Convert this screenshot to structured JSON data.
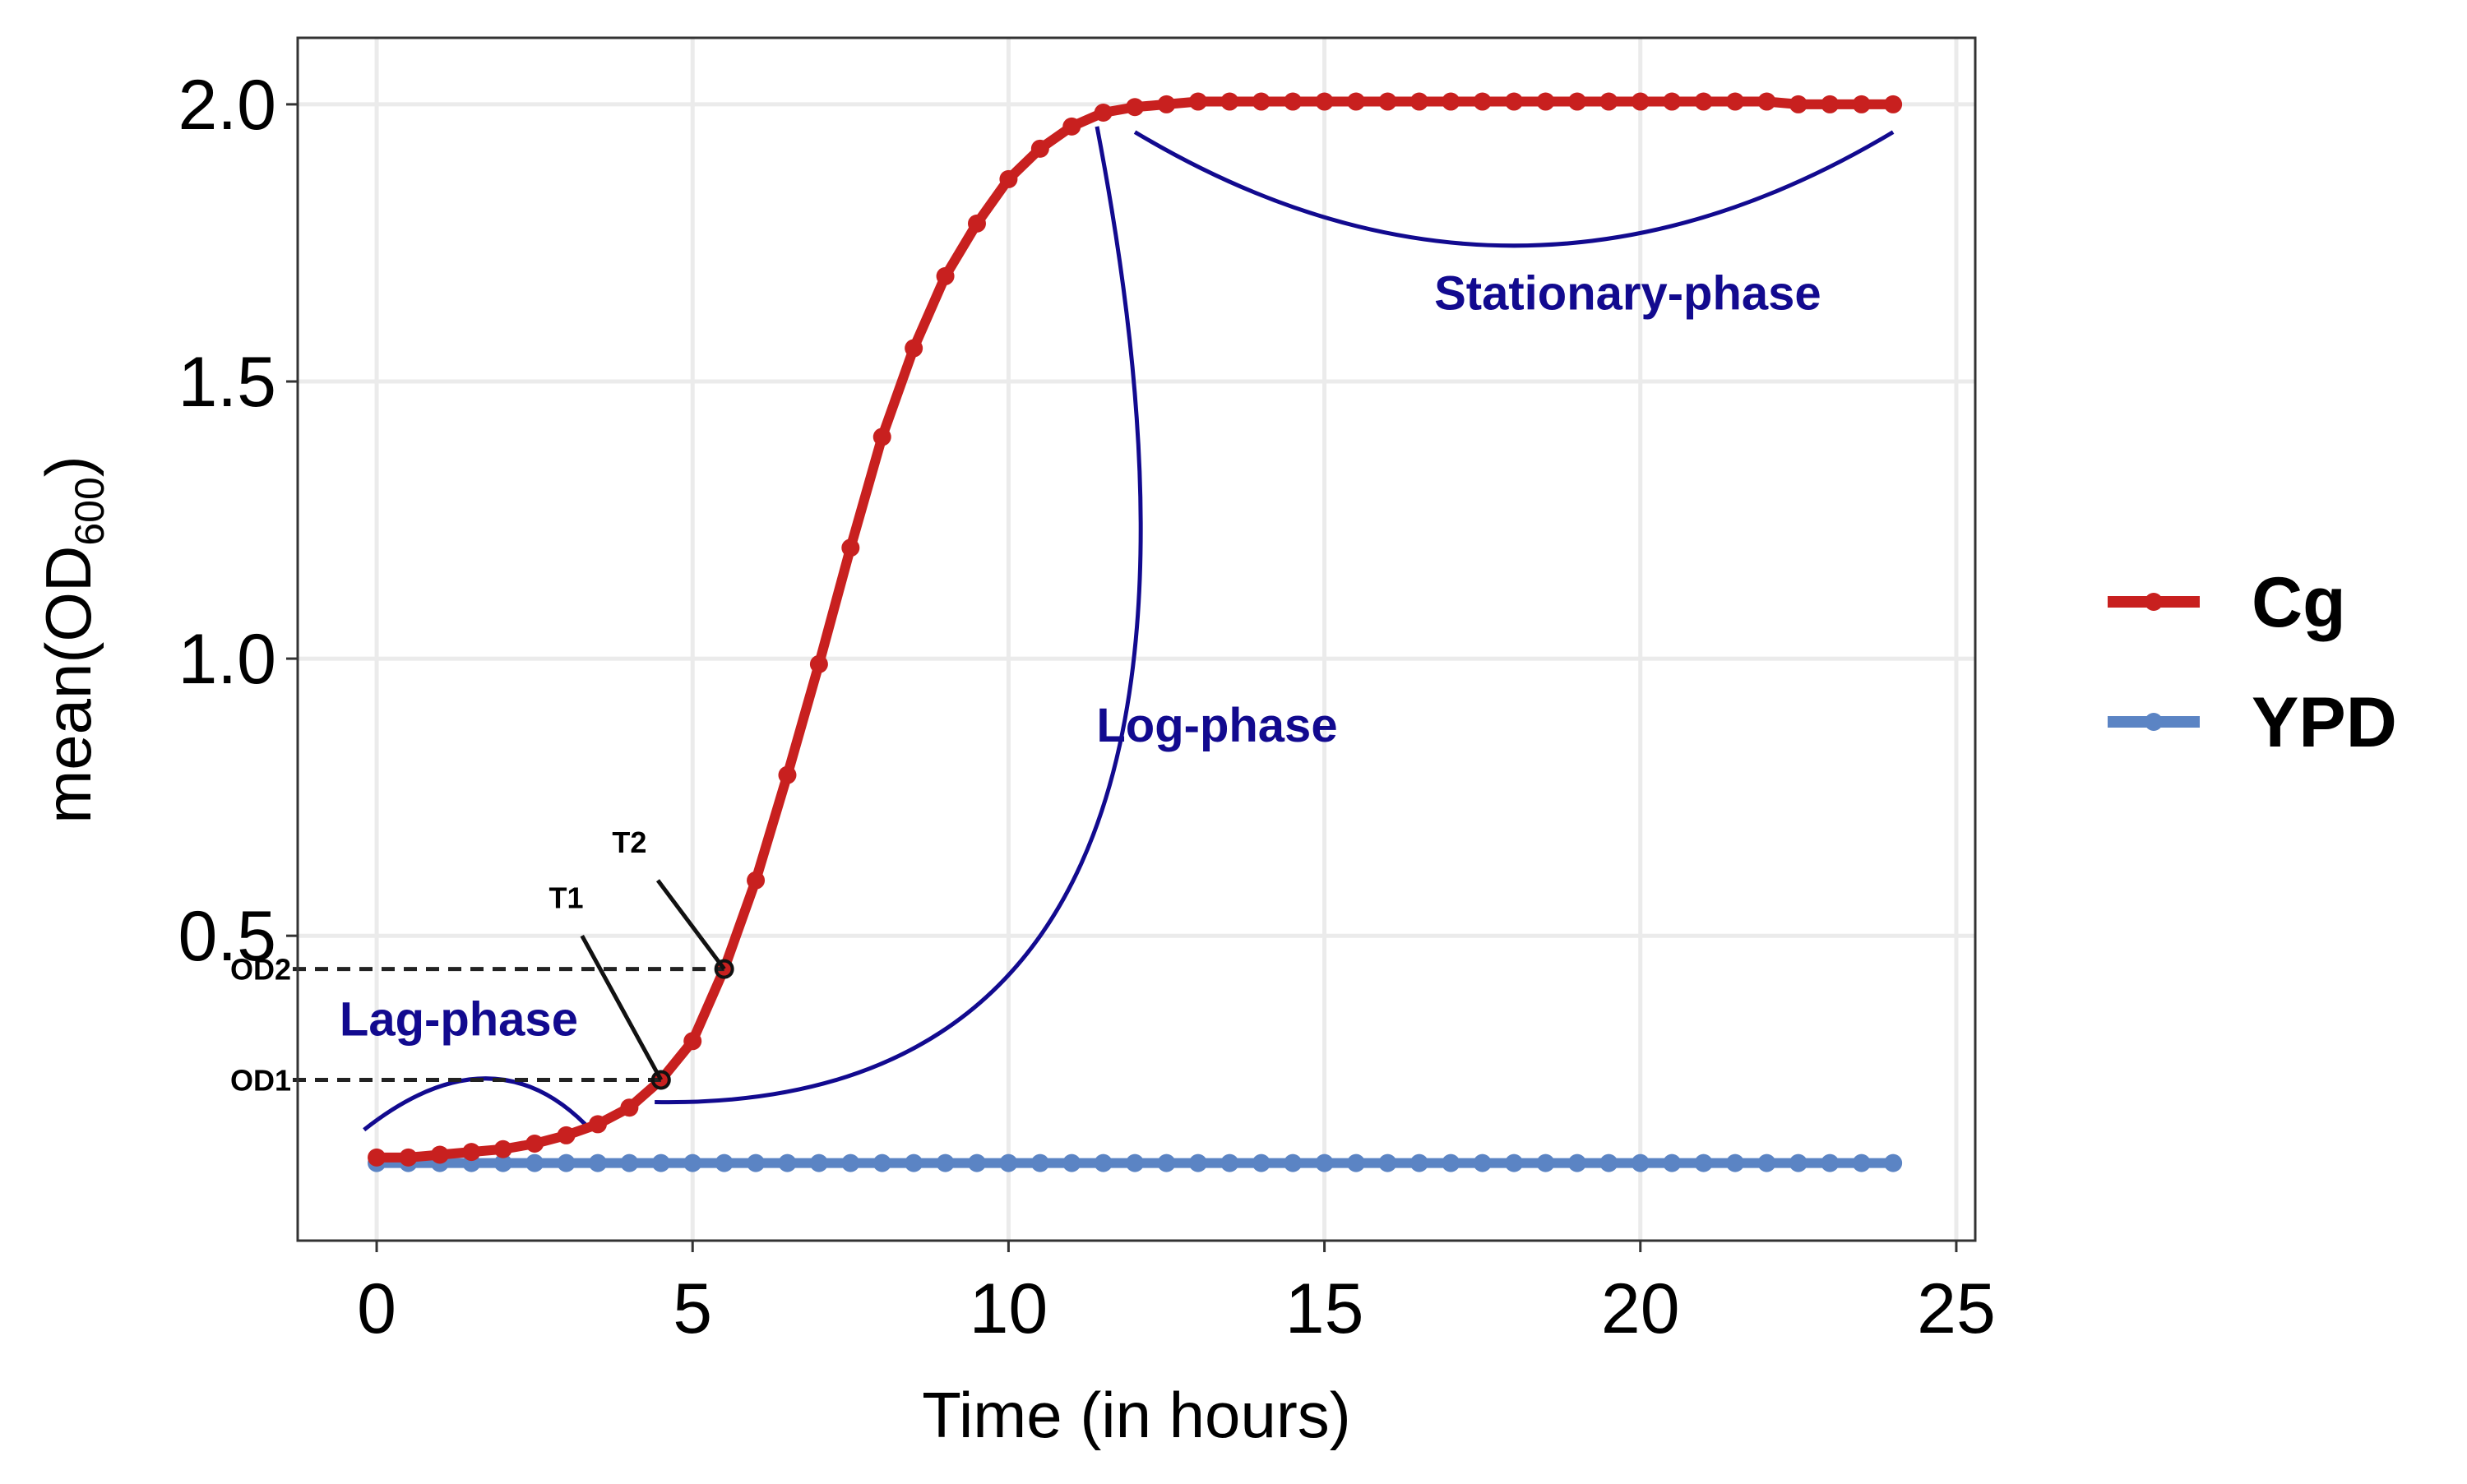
{
  "chart_data": {
    "type": "line",
    "title": "",
    "xlabel": "Time (in hours)",
    "ylabel": "mean(OD",
    "ylabel_subscript": "600",
    "ylabel_suffix": ")",
    "xlim": [
      -1.25,
      25.3
    ],
    "ylim": [
      -0.05,
      2.12
    ],
    "x_ticks": [
      0,
      5,
      10,
      15,
      20,
      25
    ],
    "x_tick_labels": [
      "0",
      "5",
      "10",
      "15",
      "20",
      "25"
    ],
    "y_ticks": [
      0.5,
      1.0,
      1.5,
      2.0
    ],
    "y_tick_labels": [
      "0.5",
      "1.0",
      "1.5",
      "2.0"
    ],
    "grid": true,
    "legend_position": "right",
    "series": [
      {
        "name": "Cg",
        "color": "#C8201F",
        "x": [
          0,
          0.5,
          1,
          1.5,
          2,
          2.5,
          3,
          3.5,
          4,
          4.5,
          5,
          5.5,
          6,
          6.5,
          7,
          7.5,
          8,
          8.5,
          9,
          9.5,
          10,
          10.5,
          11,
          11.5,
          12,
          12.5,
          13,
          13.5,
          14,
          14.5,
          15,
          15.5,
          16,
          16.5,
          17,
          17.5,
          18,
          18.5,
          19,
          19.5,
          20,
          20.5,
          21,
          21.5,
          22,
          22.5,
          23,
          23.5,
          24
        ],
        "y": [
          0.1,
          0.1,
          0.105,
          0.11,
          0.115,
          0.125,
          0.14,
          0.16,
          0.19,
          0.24,
          0.31,
          0.44,
          0.6,
          0.79,
          0.99,
          1.2,
          1.4,
          1.56,
          1.69,
          1.785,
          1.865,
          1.92,
          1.96,
          1.985,
          1.995,
          2.0,
          2.005,
          2.005,
          2.005,
          2.005,
          2.005,
          2.005,
          2.005,
          2.005,
          2.005,
          2.005,
          2.005,
          2.005,
          2.005,
          2.005,
          2.005,
          2.005,
          2.005,
          2.005,
          2.005,
          2.0,
          2.0,
          2.0,
          2.0
        ]
      },
      {
        "name": "YPD",
        "color": "#5B84C4",
        "x": [
          0,
          0.5,
          1,
          1.5,
          2,
          2.5,
          3,
          3.5,
          4,
          4.5,
          5,
          5.5,
          6,
          6.5,
          7,
          7.5,
          8,
          8.5,
          9,
          9.5,
          10,
          10.5,
          11,
          11.5,
          12,
          12.5,
          13,
          13.5,
          14,
          14.5,
          15,
          15.5,
          16,
          16.5,
          17,
          17.5,
          18,
          18.5,
          19,
          19.5,
          20,
          20.5,
          21,
          21.5,
          22,
          22.5,
          23,
          23.5,
          24
        ],
        "y": [
          0.09,
          0.09,
          0.09,
          0.09,
          0.09,
          0.09,
          0.09,
          0.09,
          0.09,
          0.09,
          0.09,
          0.09,
          0.09,
          0.09,
          0.09,
          0.09,
          0.09,
          0.09,
          0.09,
          0.09,
          0.09,
          0.09,
          0.09,
          0.09,
          0.09,
          0.09,
          0.09,
          0.09,
          0.09,
          0.09,
          0.09,
          0.09,
          0.09,
          0.09,
          0.09,
          0.09,
          0.09,
          0.09,
          0.09,
          0.09,
          0.09,
          0.09,
          0.09,
          0.09,
          0.09,
          0.09,
          0.09,
          0.09,
          0.09
        ]
      }
    ],
    "phase_color": "#120A8F",
    "phases": [
      {
        "label": "Lag-phase",
        "x": 1.3,
        "y": 0.32,
        "arc": [
          [
            -0.2,
            0.15
          ],
          [
            1.8,
            0.33
          ],
          [
            3.3,
            0.16
          ]
        ]
      },
      {
        "label": "Log-phase",
        "x": 13.3,
        "y": 0.85,
        "arc": [
          [
            4.4,
            0.2
          ],
          [
            14.4,
            0.18
          ],
          [
            11.4,
            1.96
          ]
        ]
      },
      {
        "label": "Stationary-phase",
        "x": 19.8,
        "y": 1.63,
        "arc": [
          [
            12.0,
            1.95
          ],
          [
            18.0,
            1.54
          ],
          [
            24.0,
            1.95
          ]
        ]
      }
    ],
    "markers": [
      {
        "label": "T1",
        "point": [
          4.5,
          0.24
        ],
        "text_at": [
          3.0,
          0.55
        ],
        "line_to": [
          3.25,
          0.5
        ]
      },
      {
        "label": "T2",
        "point": [
          5.5,
          0.44
        ],
        "text_at": [
          4.0,
          0.65
        ],
        "line_to": [
          4.45,
          0.6
        ]
      }
    ],
    "od_levels": [
      {
        "label": "OD1",
        "y": 0.24,
        "x_end": 4.5
      },
      {
        "label": "OD2",
        "y": 0.44,
        "x_end": 5.5
      }
    ]
  }
}
